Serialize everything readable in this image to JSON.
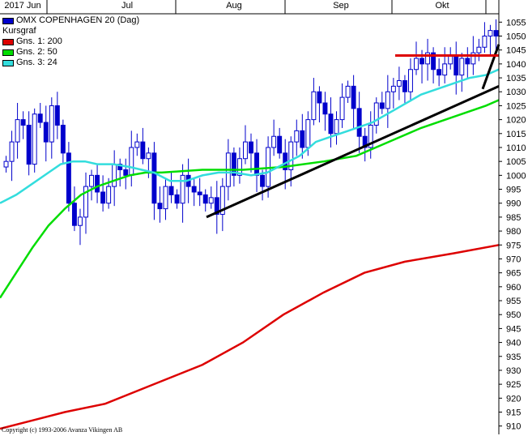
{
  "chart_data": {
    "type": "candlestick",
    "x_top_labels": [
      "2017 Jun",
      "Jul",
      "Aug",
      "Sep",
      "Okt"
    ],
    "y_ticks": [
      1055,
      1050,
      1045,
      1040,
      1035,
      1030,
      1025,
      1020,
      1015,
      1010,
      1005,
      1000,
      995,
      990,
      985,
      980,
      975,
      970,
      965,
      960,
      955,
      950,
      945,
      940,
      935,
      930,
      925,
      920,
      915,
      910
    ],
    "ylim": [
      907,
      1058
    ],
    "grid": false,
    "legend_placement": "top-left",
    "legend": [
      {
        "label": "OMX COPENHAGEN 20 (Dag)",
        "color": "#0000cc"
      },
      {
        "label": "Kursgraf",
        "color": null
      },
      {
        "label": "Gns. 1: 200",
        "color": "#dd0000"
      },
      {
        "label": "Gns. 2: 50",
        "color": "#00dd00"
      },
      {
        "label": "Gns. 3: 24",
        "color": "#33dddd"
      }
    ],
    "candles_approx_close": [
      1005,
      1012,
      1020,
      1018,
      1004,
      1022,
      1019,
      1012,
      1025,
      1018,
      1008,
      990,
      982,
      985,
      996,
      1000,
      994,
      990,
      996,
      1004,
      1002,
      1000,
      1010,
      1012,
      1006,
      1008,
      990,
      988,
      996,
      993,
      990,
      1000,
      996,
      994,
      993,
      990,
      992,
      986,
      996,
      1008,
      1000,
      1006,
      1012,
      1008,
      1000,
      996,
      1010,
      1014,
      1008,
      1002,
      1012,
      1016,
      1010,
      1020,
      1030,
      1026,
      1022,
      1015,
      1020,
      1028,
      1032,
      1024,
      1014,
      1010,
      1018,
      1026,
      1024,
      1030,
      1032,
      1034,
      1030,
      1038,
      1042,
      1040,
      1044,
      1038,
      1036,
      1040,
      1043,
      1036,
      1042,
      1040,
      1044,
      1046,
      1050,
      1052,
      1050
    ],
    "series": [
      {
        "name": "Gns. 1: 200",
        "color": "#dd0000",
        "points": [
          [
            0,
            909
          ],
          [
            40,
            912
          ],
          [
            80,
            915
          ],
          [
            130,
            918
          ],
          [
            190,
            925
          ],
          [
            250,
            932
          ],
          [
            300,
            940
          ],
          [
            350,
            950
          ],
          [
            400,
            958
          ],
          [
            450,
            965
          ],
          [
            500,
            969
          ],
          [
            560,
            972
          ],
          [
            616,
            975
          ]
        ]
      },
      {
        "name": "Gns. 2: 50",
        "color": "#00dd00",
        "points": [
          [
            0,
            956
          ],
          [
            20,
            965
          ],
          [
            40,
            974
          ],
          [
            60,
            982
          ],
          [
            80,
            988
          ],
          [
            100,
            993
          ],
          [
            120,
            996
          ],
          [
            140,
            998
          ],
          [
            160,
            1000
          ],
          [
            180,
            1001
          ],
          [
            200,
            1001
          ],
          [
            250,
            1002
          ],
          [
            300,
            1002
          ],
          [
            350,
            1003
          ],
          [
            400,
            1005
          ],
          [
            440,
            1007
          ],
          [
            480,
            1012
          ],
          [
            520,
            1017
          ],
          [
            560,
            1021
          ],
          [
            600,
            1025
          ],
          [
            616,
            1027
          ]
        ]
      },
      {
        "name": "Gns. 3: 24",
        "color": "#33dddd",
        "points": [
          [
            0,
            990
          ],
          [
            20,
            993
          ],
          [
            40,
            997
          ],
          [
            60,
            1001
          ],
          [
            75,
            1004
          ],
          [
            90,
            1005
          ],
          [
            105,
            1005
          ],
          [
            120,
            1004
          ],
          [
            140,
            1004
          ],
          [
            160,
            1003
          ],
          [
            175,
            1002
          ],
          [
            190,
            1001
          ],
          [
            210,
            998
          ],
          [
            230,
            998
          ],
          [
            250,
            1000
          ],
          [
            270,
            1001
          ],
          [
            290,
            1001
          ],
          [
            310,
            1000
          ],
          [
            330,
            1001
          ],
          [
            350,
            1004
          ],
          [
            370,
            1007
          ],
          [
            390,
            1012
          ],
          [
            410,
            1014
          ],
          [
            430,
            1016
          ],
          [
            460,
            1019
          ],
          [
            490,
            1024
          ],
          [
            520,
            1029
          ],
          [
            540,
            1031
          ],
          [
            560,
            1033
          ],
          [
            580,
            1035
          ],
          [
            600,
            1036
          ],
          [
            616,
            1038
          ]
        ]
      }
    ],
    "trendlines": [
      {
        "color": "#000000",
        "from": [
          255,
          985
        ],
        "to": [
          616,
          1032
        ]
      },
      {
        "color": "#000000",
        "from": [
          596,
          1031
        ],
        "to": [
          616,
          1047
        ]
      },
      {
        "color": "#dd0000",
        "from": [
          488,
          1043
        ],
        "to": [
          616,
          1043
        ]
      }
    ]
  },
  "copyright": "Copyright (c) 1993-2006 Avanza Vikingen AB"
}
